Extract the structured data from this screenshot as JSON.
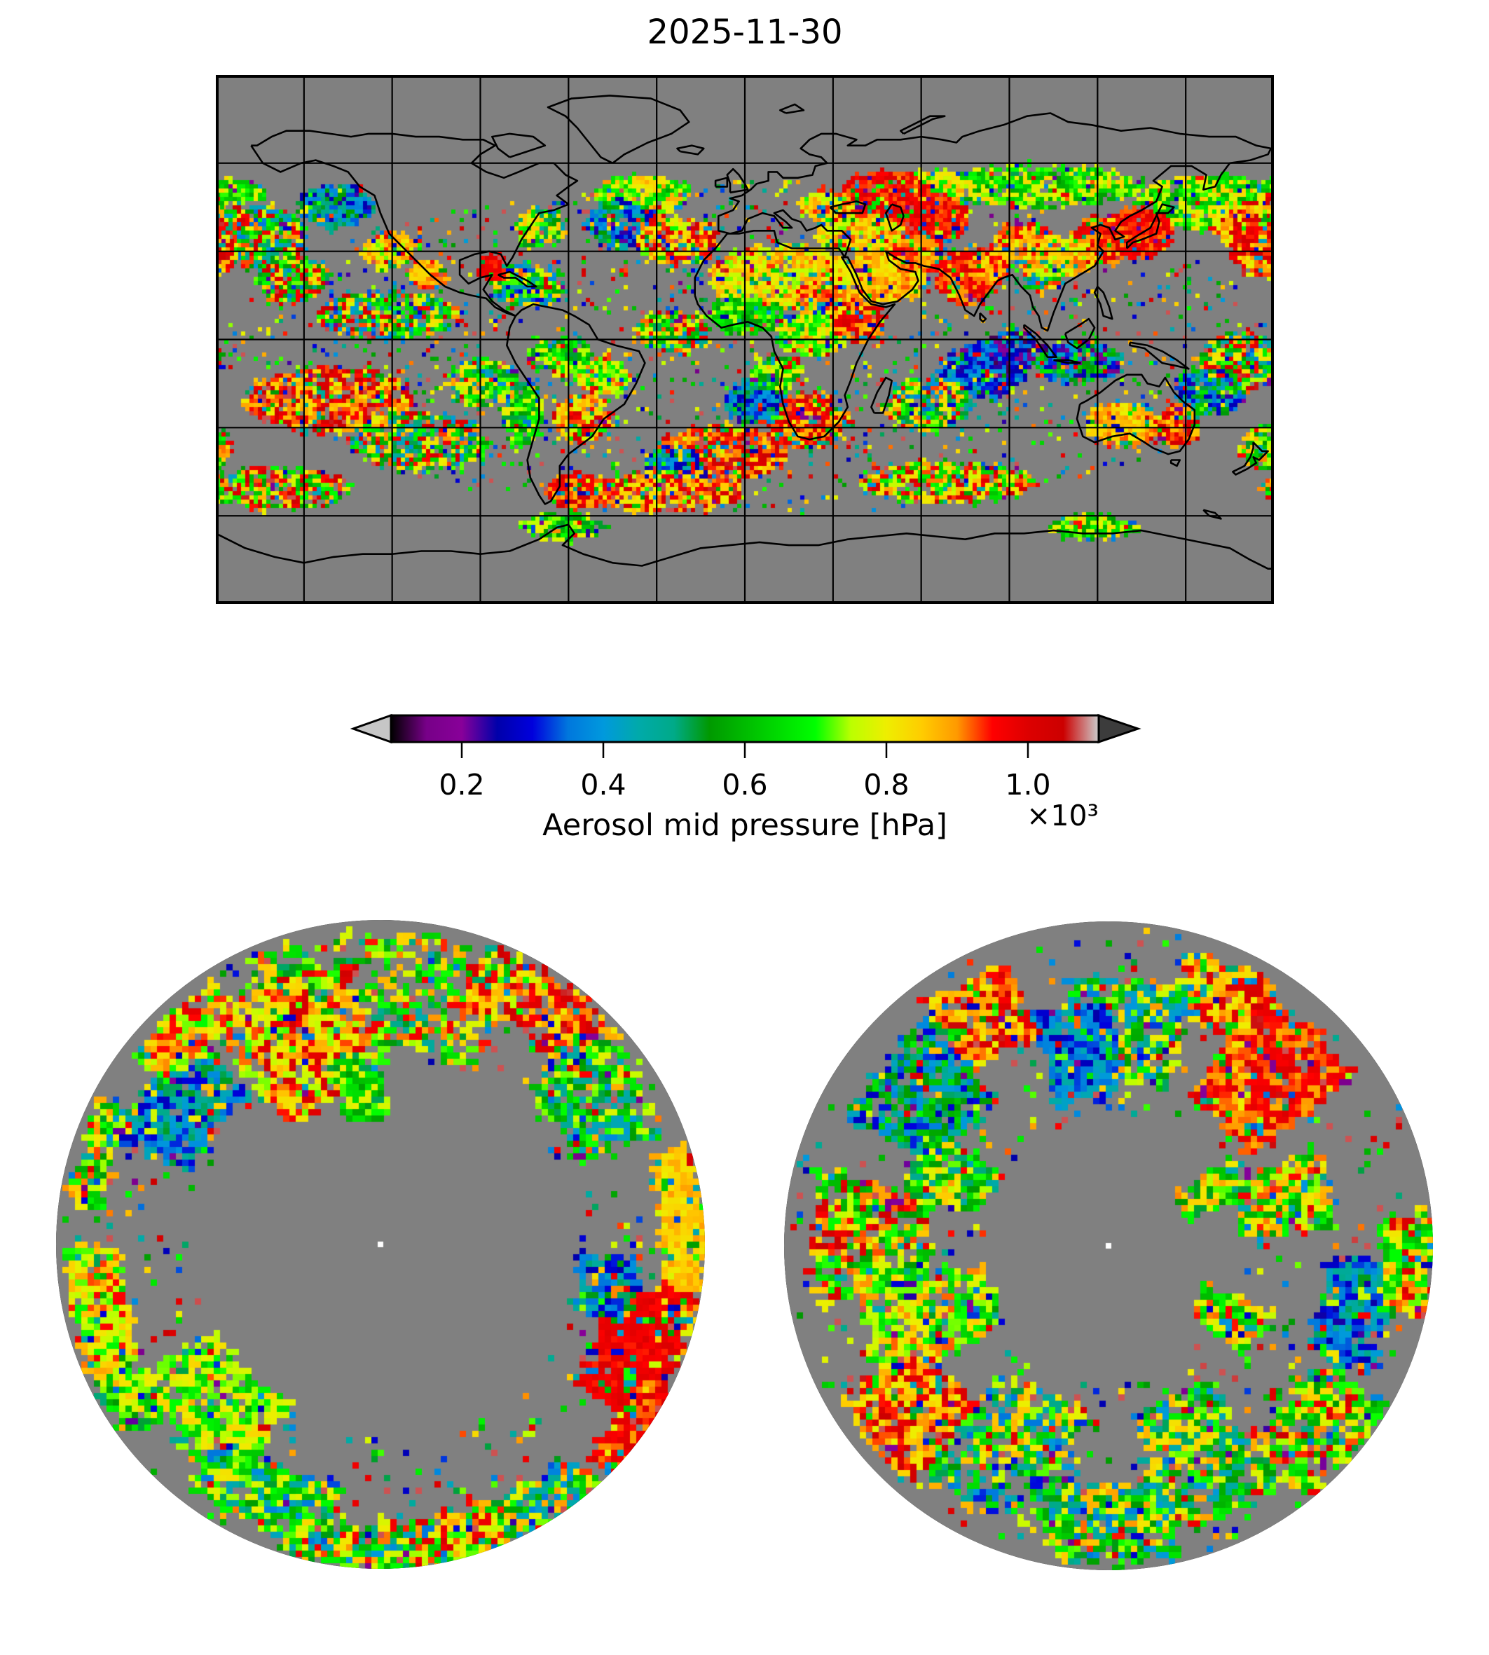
{
  "title": "2025-11-30",
  "colorbar": {
    "label": "Aerosol mid pressure [hPa]",
    "offset_text": "×10³",
    "tick_labels": [
      "0.2",
      "0.4",
      "0.6",
      "0.8",
      "1.0"
    ]
  },
  "chart_data": {
    "type": "heatmap",
    "title": "2025-11-30",
    "variable": "Aerosol mid pressure",
    "units": "hPa",
    "map_background_color": "#808080",
    "coastline_color": "#000000",
    "gridline_color": "#000000",
    "colorbar": {
      "label": "Aerosol mid pressure [hPa]",
      "orientation": "horizontal",
      "extend": "both",
      "vmin_hPa": 100,
      "vmax_hPa": 1100,
      "tick_values_hPa": [
        200,
        400,
        600,
        800,
        1000
      ],
      "tick_labels": [
        "0.2",
        "0.4",
        "0.6",
        "0.8",
        "1.0"
      ],
      "offset_factor": "×10³",
      "under_color": "#c6c6c6",
      "over_color": "#3c3c3c",
      "colormap": "nipy_spectral",
      "colormap_stops": [
        [
          0.0,
          "#000000"
        ],
        [
          0.05,
          "#770088"
        ],
        [
          0.1,
          "#880099"
        ],
        [
          0.15,
          "#0000aa"
        ],
        [
          0.2,
          "#0000dd"
        ],
        [
          0.25,
          "#0077dd"
        ],
        [
          0.3,
          "#0099dd"
        ],
        [
          0.35,
          "#00aaaa"
        ],
        [
          0.4,
          "#00aa88"
        ],
        [
          0.45,
          "#009900"
        ],
        [
          0.5,
          "#00bb00"
        ],
        [
          0.55,
          "#00dd00"
        ],
        [
          0.6,
          "#00ff00"
        ],
        [
          0.65,
          "#bbff00"
        ],
        [
          0.7,
          "#eeee00"
        ],
        [
          0.75,
          "#ffcc00"
        ],
        [
          0.8,
          "#ff9900"
        ],
        [
          0.85,
          "#ff0000"
        ],
        [
          0.9,
          "#dd0000"
        ],
        [
          0.95,
          "#cc0000"
        ],
        [
          1.0,
          "#cccccc"
        ]
      ]
    },
    "panels": [
      {
        "id": "global",
        "projection": "equirectangular",
        "lon_range": [
          -180,
          180
        ],
        "lat_range": [
          -90,
          90
        ],
        "gridline_spacing_deg": 30
      },
      {
        "id": "north-polar",
        "projection": "north-polar-stereographic",
        "edge_latitude": 55,
        "parallels": [
          80,
          70,
          60
        ],
        "meridian_spacing_deg": 60,
        "pole_marker": "white-dot"
      },
      {
        "id": "south-polar",
        "projection": "south-polar-stereographic",
        "edge_latitude": -55,
        "parallels": [
          -80,
          -70,
          -60
        ],
        "meridian_spacing_deg": 60,
        "pole_marker": "white-dot"
      }
    ],
    "seed": 20251130,
    "pixel_size": {
      "global": 6,
      "polar": 9
    },
    "cluster_format": "[c1, s1, c2, s2, n_pixels, value01, value_spread, sparse] ; global: c1=lon c2=lat (deg); polar: c1=screen azimuth deg clockwise from top, c2=radius fraction",
    "clusters": {
      "global": [
        [
          155,
          22,
          47,
          9,
          500,
          0.6,
          0.28,
          0
        ],
        [
          170,
          12,
          42,
          10,
          300,
          0.8,
          0.3,
          0
        ],
        [
          133,
          11,
          37,
          8,
          380,
          0.86,
          0.1,
          0
        ],
        [
          120,
          9,
          34,
          8,
          300,
          0.85,
          0.12,
          0
        ],
        [
          107,
          11,
          29,
          7,
          240,
          0.73,
          0.18,
          0
        ],
        [
          95,
          10,
          33,
          7,
          200,
          0.78,
          0.2,
          0
        ],
        [
          100,
          35,
          53,
          7,
          520,
          0.6,
          0.3,
          0
        ],
        [
          60,
          14,
          50,
          8,
          350,
          0.68,
          0.25,
          0
        ],
        [
          47,
          15,
          49,
          9,
          550,
          0.86,
          0.09,
          0
        ],
        [
          63,
          12,
          42,
          8,
          380,
          0.86,
          0.1,
          0
        ],
        [
          38,
          14,
          37,
          6,
          260,
          0.73,
          0.22,
          0
        ],
        [
          27,
          8,
          46,
          5,
          180,
          0.72,
          0.25,
          0
        ],
        [
          48,
          13,
          23,
          10,
          560,
          0.75,
          0.15,
          0
        ],
        [
          58,
          8,
          30,
          6,
          220,
          0.82,
          0.12,
          0
        ],
        [
          75,
          10,
          22,
          9,
          460,
          0.85,
          0.13,
          0
        ],
        [
          83,
          6,
          26,
          5,
          160,
          0.78,
          0.18,
          0
        ],
        [
          12,
          24,
          22,
          11,
          720,
          0.72,
          0.18,
          0
        ],
        [
          28,
          10,
          14,
          8,
          300,
          0.78,
          0.2,
          0
        ],
        [
          0,
          12,
          9,
          6,
          280,
          0.56,
          0.25,
          0
        ],
        [
          22,
          12,
          3,
          8,
          320,
          0.66,
          0.25,
          0
        ],
        [
          38,
          8,
          7,
          7,
          220,
          0.85,
          0.18,
          0
        ],
        [
          20,
          14,
          -27,
          9,
          380,
          0.85,
          0.22,
          0
        ],
        [
          -8,
          22,
          -38,
          9,
          520,
          0.85,
          0.25,
          0
        ],
        [
          3,
          10,
          -20,
          8,
          260,
          0.3,
          0.3,
          0
        ],
        [
          10,
          8,
          -11,
          6,
          200,
          0.56,
          0.3,
          0
        ],
        [
          -25,
          9,
          -42,
          6,
          300,
          0.25,
          0.25,
          0
        ],
        [
          80,
          14,
          -10,
          9,
          440,
          0.22,
          0.22,
          0
        ],
        [
          62,
          14,
          -21,
          9,
          320,
          0.6,
          0.65,
          0
        ],
        [
          90,
          9,
          -3,
          7,
          220,
          0.16,
          0.3,
          0
        ],
        [
          100,
          6,
          22,
          5,
          150,
          0.6,
          0.5,
          0
        ],
        [
          113,
          14,
          -7,
          7,
          340,
          0.3,
          0.55,
          0
        ],
        [
          128,
          12,
          -28,
          7,
          540,
          0.76,
          0.14,
          0
        ],
        [
          147,
          7,
          -29,
          7,
          200,
          0.85,
          0.2,
          0
        ],
        [
          158,
          12,
          -17,
          8,
          280,
          0.32,
          0.4,
          0
        ],
        [
          168,
          13,
          -7,
          10,
          360,
          0.6,
          0.75,
          0
        ],
        [
          176,
          8,
          -36,
          7,
          180,
          0.68,
          0.5,
          0
        ],
        [
          -142,
          28,
          -20,
          11,
          650,
          0.83,
          0.28,
          0
        ],
        [
          -112,
          24,
          -34,
          10,
          420,
          0.6,
          0.65,
          0
        ],
        [
          -90,
          12,
          -14,
          8,
          260,
          0.56,
          0.4,
          0
        ],
        [
          -76,
          6,
          -25,
          11,
          240,
          0.56,
          0.3,
          0
        ],
        [
          -56,
          10,
          -26,
          8,
          260,
          0.8,
          0.3,
          0
        ],
        [
          -49,
          9,
          -12,
          6,
          220,
          0.7,
          0.3,
          0
        ],
        [
          -63,
          10,
          -5,
          6,
          180,
          0.56,
          0.3,
          0
        ],
        [
          -28,
          26,
          -51,
          7,
          440,
          0.83,
          0.28,
          0
        ],
        [
          68,
          30,
          -48,
          7,
          400,
          0.72,
          0.45,
          0
        ],
        [
          -160,
          26,
          -50,
          7,
          320,
          0.72,
          0.55,
          0
        ],
        [
          -58,
          10,
          -51,
          6,
          220,
          0.85,
          0.18,
          0
        ],
        [
          -62,
          14,
          -63,
          4,
          200,
          0.57,
          0.3,
          0
        ],
        [
          118,
          14,
          -63,
          4,
          160,
          0.6,
          0.3,
          0
        ],
        [
          -35,
          16,
          50,
          6,
          380,
          0.66,
          0.28,
          0
        ],
        [
          -42,
          12,
          40,
          8,
          300,
          0.3,
          0.38,
          0
        ],
        [
          -24,
          14,
          34,
          8,
          260,
          0.8,
          0.3,
          0
        ],
        [
          -75,
          12,
          19,
          7,
          300,
          0.5,
          0.65,
          0
        ],
        [
          -86,
          4,
          25,
          4,
          100,
          0.87,
          0.08,
          0
        ],
        [
          -70,
          8,
          39,
          6,
          160,
          0.6,
          0.4,
          0
        ],
        [
          -168,
          18,
          36,
          10,
          520,
          0.6,
          0.75,
          0
        ],
        [
          -140,
          12,
          46,
          7,
          320,
          0.3,
          0.33,
          0
        ],
        [
          -122,
          8,
          31,
          6,
          240,
          0.73,
          0.22,
          0
        ],
        [
          -108,
          6,
          23,
          5,
          200,
          0.79,
          0.14,
          0
        ],
        [
          -122,
          24,
          9,
          8,
          420,
          0.6,
          0.75,
          0
        ],
        [
          -25,
          12,
          3,
          7,
          260,
          0.65,
          0.55,
          0
        ],
        [
          176,
          10,
          31,
          9,
          300,
          0.82,
          0.28,
          0
        ],
        [
          163,
          10,
          51,
          5,
          260,
          0.63,
          0.28,
          0
        ],
        [
          -176,
          12,
          51,
          4,
          220,
          0.6,
          0.28,
          0
        ],
        [
          -155,
          12,
          21,
          8,
          300,
          0.65,
          0.65,
          0
        ],
        [
          0,
          178,
          -2,
          57,
          1700,
          0.6,
          0.9,
          1
        ]
      ],
      "north": [
        [
          0,
          26,
          0.8,
          0.18,
          380,
          0.62,
          0.5,
          0
        ],
        [
          34,
          16,
          0.88,
          0.1,
          280,
          0.82,
          0.28,
          0
        ],
        [
          55,
          12,
          0.8,
          0.14,
          260,
          0.5,
          0.4,
          0
        ],
        [
          88,
          16,
          0.93,
          0.06,
          420,
          0.75,
          0.1,
          0
        ],
        [
          112,
          13,
          0.85,
          0.12,
          480,
          0.87,
          0.07,
          0
        ],
        [
          126,
          9,
          0.95,
          0.05,
          220,
          0.85,
          0.12,
          0
        ],
        [
          152,
          14,
          0.93,
          0.07,
          260,
          0.55,
          0.6,
          0
        ],
        [
          170,
          12,
          0.92,
          0.07,
          240,
          0.72,
          0.4,
          0
        ],
        [
          186,
          12,
          0.93,
          0.06,
          220,
          0.6,
          0.6,
          0
        ],
        [
          205,
          14,
          0.85,
          0.1,
          280,
          0.5,
          0.5,
          0
        ],
        [
          227,
          15,
          0.72,
          0.15,
          380,
          0.63,
          0.22,
          0
        ],
        [
          243,
          10,
          0.92,
          0.06,
          180,
          0.6,
          0.4,
          0
        ],
        [
          258,
          12,
          0.9,
          0.08,
          260,
          0.73,
          0.28,
          0
        ],
        [
          288,
          10,
          0.93,
          0.05,
          160,
          0.62,
          0.5,
          0
        ],
        [
          305,
          13,
          0.75,
          0.12,
          300,
          0.3,
          0.28,
          0
        ],
        [
          318,
          10,
          0.9,
          0.07,
          200,
          0.74,
          0.3,
          0
        ],
        [
          338,
          16,
          0.68,
          0.2,
          420,
          0.77,
          0.33,
          0
        ],
        [
          352,
          8,
          0.5,
          0.1,
          140,
          0.55,
          0.3,
          0
        ],
        [
          100,
          8,
          0.7,
          0.08,
          160,
          0.3,
          0.3,
          0
        ],
        [
          0,
          180,
          0.8,
          0.2,
          420,
          0.6,
          0.9,
          1
        ]
      ],
      "south": [
        [
          42,
          13,
          0.72,
          0.2,
          600,
          0.84,
          0.13,
          0
        ],
        [
          24,
          9,
          0.85,
          0.1,
          220,
          0.82,
          0.28,
          0
        ],
        [
          5,
          13,
          0.68,
          0.16,
          300,
          0.5,
          0.6,
          0
        ],
        [
          350,
          9,
          0.62,
          0.14,
          320,
          0.25,
          0.22,
          0
        ],
        [
          331,
          9,
          0.82,
          0.12,
          260,
          0.82,
          0.28,
          0
        ],
        [
          309,
          13,
          0.75,
          0.16,
          340,
          0.36,
          0.4,
          0
        ],
        [
          294,
          9,
          0.55,
          0.12,
          220,
          0.56,
          0.4,
          0
        ],
        [
          272,
          13,
          0.75,
          0.18,
          320,
          0.7,
          0.5,
          0
        ],
        [
          250,
          13,
          0.6,
          0.2,
          400,
          0.67,
          0.3,
          0
        ],
        [
          231,
          11,
          0.8,
          0.15,
          320,
          0.82,
          0.26,
          0
        ],
        [
          205,
          15,
          0.7,
          0.2,
          340,
          0.5,
          0.6,
          0
        ],
        [
          180,
          12,
          0.85,
          0.12,
          300,
          0.55,
          0.6,
          0
        ],
        [
          157,
          13,
          0.7,
          0.2,
          320,
          0.55,
          0.5,
          0
        ],
        [
          131,
          12,
          0.85,
          0.12,
          280,
          0.7,
          0.5,
          0
        ],
        [
          104,
          12,
          0.78,
          0.1,
          320,
          0.28,
          0.28,
          0
        ],
        [
          93,
          9,
          0.92,
          0.07,
          240,
          0.7,
          0.45,
          0
        ],
        [
          74,
          11,
          0.55,
          0.15,
          260,
          0.66,
          0.4,
          0
        ],
        [
          60,
          8,
          0.35,
          0.1,
          140,
          0.62,
          0.4,
          0
        ],
        [
          120,
          8,
          0.42,
          0.1,
          160,
          0.66,
          0.4,
          0
        ],
        [
          0,
          180,
          0.7,
          0.3,
          520,
          0.6,
          0.9,
          1
        ]
      ]
    }
  }
}
